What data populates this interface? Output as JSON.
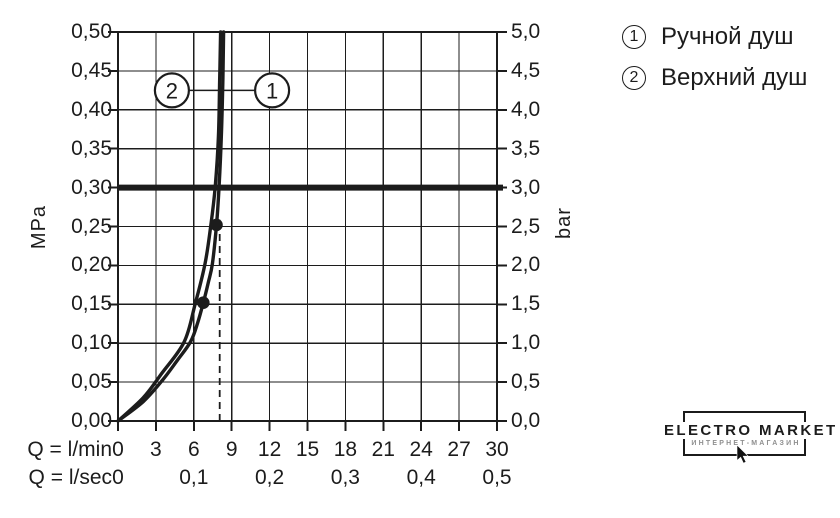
{
  "page": {
    "bg": "#ffffff",
    "ink": "#1c1c1c"
  },
  "chart_data": {
    "type": "line",
    "title": "",
    "x_axis": {
      "primary_label": "Q = l/min",
      "secondary_label": "Q = l/sec",
      "min": 0,
      "max": 30,
      "grid_step": 3,
      "primary_ticks": [
        {
          "v": 0,
          "label": "0"
        },
        {
          "v": 3,
          "label": "3"
        },
        {
          "v": 6,
          "label": "6"
        },
        {
          "v": 9,
          "label": "9"
        },
        {
          "v": 12,
          "label": "12"
        },
        {
          "v": 15,
          "label": "15"
        },
        {
          "v": 18,
          "label": "18"
        },
        {
          "v": 21,
          "label": "21"
        },
        {
          "v": 24,
          "label": "24"
        },
        {
          "v": 27,
          "label": "27"
        },
        {
          "v": 30,
          "label": "30"
        }
      ],
      "secondary_ticks": [
        {
          "v": 0,
          "label": "0"
        },
        {
          "v": 6,
          "label": "0,1"
        },
        {
          "v": 12,
          "label": "0,2"
        },
        {
          "v": 18,
          "label": "0,3"
        },
        {
          "v": 24,
          "label": "0,4"
        },
        {
          "v": 30,
          "label": "0,5"
        }
      ]
    },
    "y_left": {
      "unit": "MPa",
      "min": 0,
      "max": 0.5,
      "grid_step": 0.05,
      "ticks": [
        {
          "v": 0.5,
          "label": "0,50"
        },
        {
          "v": 0.45,
          "label": "0,45"
        },
        {
          "v": 0.4,
          "label": "0,40"
        },
        {
          "v": 0.35,
          "label": "0,35"
        },
        {
          "v": 0.3,
          "label": "0,30"
        },
        {
          "v": 0.25,
          "label": "0,25"
        },
        {
          "v": 0.2,
          "label": "0,20"
        },
        {
          "v": 0.15,
          "label": "0,15"
        },
        {
          "v": 0.1,
          "label": "0,10"
        },
        {
          "v": 0.05,
          "label": "0,05"
        },
        {
          "v": 0.0,
          "label": "0,00"
        }
      ]
    },
    "y_right": {
      "unit": "bar",
      "min": 0,
      "max": 5,
      "ticks": [
        {
          "v": 0.5,
          "label": "5,0"
        },
        {
          "v": 0.45,
          "label": "4,5"
        },
        {
          "v": 0.4,
          "label": "4,0"
        },
        {
          "v": 0.35,
          "label": "3,5"
        },
        {
          "v": 0.3,
          "label": "3,0"
        },
        {
          "v": 0.25,
          "label": "2,5"
        },
        {
          "v": 0.2,
          "label": "2,0"
        },
        {
          "v": 0.15,
          "label": "1,5"
        },
        {
          "v": 0.1,
          "label": "1,0"
        },
        {
          "v": 0.05,
          "label": "0,5"
        },
        {
          "v": 0.0,
          "label": "0,0"
        }
      ]
    },
    "reference_line_mpa": 0.3,
    "dashed_guide": {
      "x_lmin": 8.05,
      "y_top_mpa": 0.252
    },
    "series": [
      {
        "id": "1",
        "name": "Ручной душ",
        "points_lmin_mpa": [
          [
            0,
            0
          ],
          [
            2,
            0.025
          ],
          [
            3.5,
            0.052
          ],
          [
            4.7,
            0.078
          ],
          [
            5.75,
            0.102
          ],
          [
            6.3,
            0.126
          ],
          [
            6.75,
            0.152
          ],
          [
            7.15,
            0.178
          ],
          [
            7.47,
            0.202
          ],
          [
            7.8,
            0.252
          ],
          [
            8.0,
            0.302
          ],
          [
            8.18,
            0.365
          ],
          [
            8.3,
            0.44
          ],
          [
            8.36,
            0.5
          ]
        ],
        "markers": [
          [
            6.75,
            0.152
          ],
          [
            7.8,
            0.252
          ]
        ]
      },
      {
        "id": "2",
        "name": "Верхний душ",
        "points_lmin_mpa": [
          [
            0,
            0
          ],
          [
            2,
            0.03
          ],
          [
            3.5,
            0.062
          ],
          [
            5.25,
            0.102
          ],
          [
            6.1,
            0.15
          ],
          [
            6.89,
            0.202
          ],
          [
            7.35,
            0.252
          ],
          [
            7.7,
            0.302
          ],
          [
            7.95,
            0.365
          ],
          [
            8.05,
            0.44
          ],
          [
            8.12,
            0.5
          ]
        ],
        "markers": []
      }
    ],
    "callouts": [
      {
        "label": "2",
        "x_lmin": 4.27,
        "y_mpa": 0.425
      },
      {
        "label": "1",
        "x_lmin": 12.2,
        "y_mpa": 0.425
      }
    ]
  },
  "legend": {
    "items": [
      {
        "num": "1",
        "label": "Ручной душ"
      },
      {
        "num": "2",
        "label": "Верхний душ"
      }
    ]
  },
  "logo": {
    "title": "ELECTRO MARKET",
    "subtitle": "ИНТЕРНЕТ-МАГАЗИН"
  }
}
